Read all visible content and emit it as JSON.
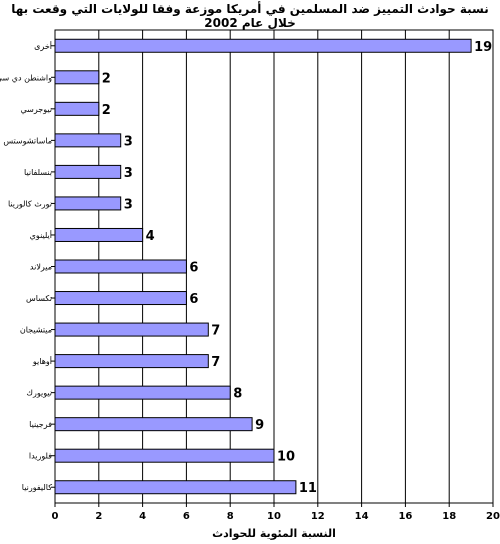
{
  "chart_data": {
    "type": "bar",
    "orientation": "horizontal",
    "title": "نسبة حوادث التمييز ضد المسلمين في أمريكا موزعة وفقا للولايات التي وقعت بها خلال عام 2002",
    "xlabel": "النسبة المئوية للحوادث",
    "ylabel": "",
    "categories": [
      "أخرى",
      "واشنطن دي سي",
      "نيوجرسي",
      "ماساتشوستس",
      "بنسلفانيا",
      "نورث كالورينا",
      "أيلينوي",
      "ميرلاند",
      "تكساس",
      "ميتشيجان",
      "أوهايو",
      "نيويورك",
      "فرجينيا",
      "فلوريدا",
      "كاليفورنيا"
    ],
    "values": [
      19,
      2,
      2,
      3,
      3,
      3,
      4,
      6,
      6,
      7,
      7,
      8,
      9,
      10,
      11
    ],
    "xlim": [
      0,
      20
    ],
    "xticks": [
      0,
      2,
      4,
      6,
      8,
      10,
      12,
      14,
      16,
      18,
      20
    ],
    "grid": "vertical",
    "bar_color": "#9999ff"
  }
}
